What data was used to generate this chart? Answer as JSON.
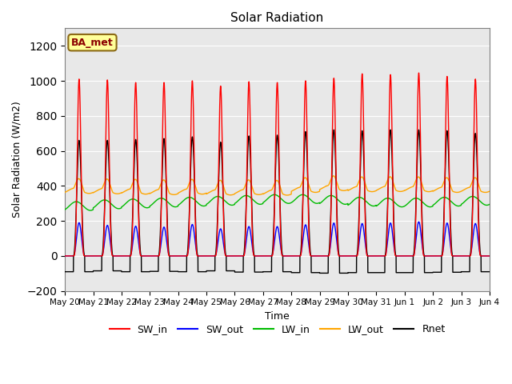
{
  "title": "Solar Radiation",
  "ylabel": "Solar Radiation (W/m2)",
  "xlabel": "Time",
  "ylim": [
    -200,
    1300
  ],
  "yticks": [
    -200,
    0,
    200,
    400,
    600,
    800,
    1000,
    1200
  ],
  "x_tick_labels": [
    "May 20",
    "May 21",
    "May 22",
    "May 23",
    "May 24",
    "May 25",
    "May 26",
    "May 27",
    "May 28",
    "May 29",
    "May 30",
    "May 31",
    "Jun 1",
    "Jun 2",
    "Jun 3",
    "Jun 4"
  ],
  "n_days": 15,
  "pts_per_day": 288,
  "SW_in_peak": [
    1010,
    1005,
    990,
    990,
    1000,
    970,
    995,
    990,
    1000,
    1015,
    1040,
    1035,
    1045,
    1025,
    1010
  ],
  "SW_out_peak": [
    190,
    175,
    170,
    165,
    180,
    155,
    168,
    168,
    178,
    188,
    185,
    188,
    195,
    188,
    185
  ],
  "LW_in_base": [
    285,
    295,
    300,
    305,
    310,
    315,
    320,
    325,
    325,
    320,
    310,
    305,
    305,
    310,
    315
  ],
  "LW_out_base": [
    372,
    370,
    368,
    365,
    368,
    363,
    365,
    362,
    378,
    388,
    382,
    383,
    382,
    378,
    378
  ],
  "Rnet_peak": [
    660,
    660,
    665,
    670,
    680,
    650,
    685,
    690,
    710,
    720,
    715,
    720,
    720,
    715,
    700
  ],
  "Rnet_night": [
    -90,
    -85,
    -90,
    -88,
    -90,
    -85,
    -92,
    -90,
    -95,
    -98,
    -95,
    -95,
    -95,
    -93,
    -90
  ],
  "colors": {
    "SW_in": "#ff0000",
    "SW_out": "#0000ff",
    "LW_in": "#00bb00",
    "LW_out": "#ffa500",
    "Rnet": "#000000"
  },
  "bg_color": "#e8e8e8",
  "plot_bg": "#d8d8d8",
  "annotation_text": "BA_met",
  "annotation_box_color": "#ffff99",
  "annotation_box_edge": "#8b6914",
  "figsize": [
    6.4,
    4.8
  ],
  "dpi": 100
}
